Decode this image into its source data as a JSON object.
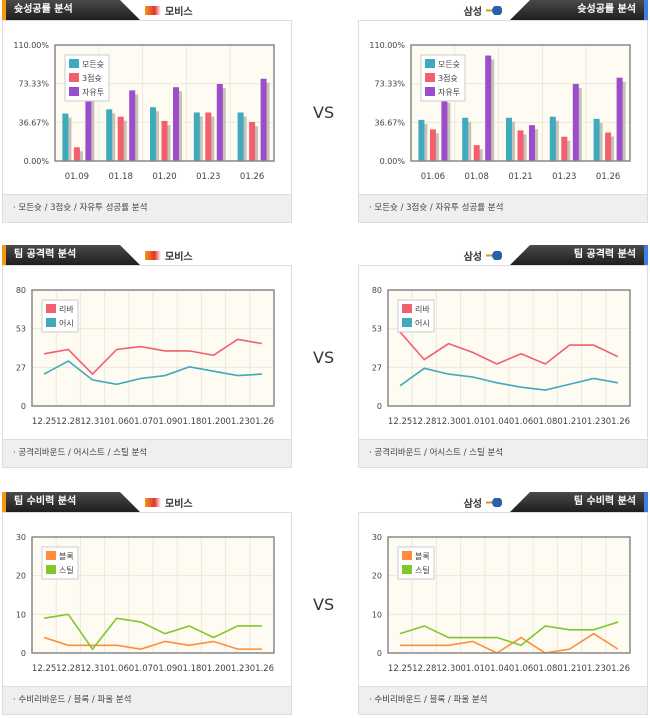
{
  "vs": "VS",
  "teams": {
    "left": "모비스",
    "right": "삼성"
  },
  "sections": [
    {
      "title": "슛성공률 분석",
      "footer": "· 모든슛 / 3점슛 / 자유투 성공률 분석"
    },
    {
      "title": "팀 공격력 분석",
      "footer": "· 공격리바운드 / 어시스트 / 스틸 분석"
    },
    {
      "title": "팀 수비력 분석",
      "footer": "· 수비리바운드 / 블록 / 파울 분석"
    }
  ],
  "colors": {
    "teal": "#3fa9be",
    "red": "#f25f6e",
    "purple": "#9c4dcc",
    "orange": "#ff8c3a",
    "green": "#80c828"
  },
  "chart_data": [
    {
      "id": "shoot-left",
      "type": "bar",
      "ylim": [
        0,
        110
      ],
      "yticks": [
        "0.00%",
        "36.67%",
        "73.33%",
        "110.00%"
      ],
      "categories": [
        "01.09",
        "01.18",
        "01.20",
        "01.23",
        "01.26"
      ],
      "series": [
        {
          "name": "모든슛",
          "color": "#3fa9be",
          "values": [
            45,
            49,
            51,
            46,
            46
          ]
        },
        {
          "name": "3점슛",
          "color": "#f25f6e",
          "values": [
            13,
            42,
            38,
            46,
            37
          ]
        },
        {
          "name": "자유투",
          "color": "#9c4dcc",
          "values": [
            61,
            67,
            70,
            73,
            78
          ]
        }
      ]
    },
    {
      "id": "shoot-right",
      "type": "bar",
      "ylim": [
        0,
        110
      ],
      "yticks": [
        "0.00%",
        "36.67%",
        "73.33%",
        "110.00%"
      ],
      "categories": [
        "01.06",
        "01.08",
        "01.21",
        "01.23",
        "01.26"
      ],
      "series": [
        {
          "name": "모든슛",
          "color": "#3fa9be",
          "values": [
            39,
            41,
            41,
            42,
            40
          ]
        },
        {
          "name": "3점슛",
          "color": "#f25f6e",
          "values": [
            30,
            15,
            29,
            23,
            27
          ]
        },
        {
          "name": "자유투",
          "color": "#9c4dcc",
          "values": [
            59,
            100,
            34,
            73,
            79
          ]
        }
      ]
    },
    {
      "id": "attack-left",
      "type": "line",
      "ylim": [
        0,
        80
      ],
      "yticks": [
        "0",
        "27",
        "53",
        "80"
      ],
      "categories": [
        "12.25",
        "12.28",
        "12.31",
        "01.06",
        "01.07",
        "01.09",
        "01.18",
        "01.20",
        "01.23",
        "01.26"
      ],
      "series": [
        {
          "name": "리바",
          "color": "#f25f6e",
          "values": [
            36,
            39,
            22,
            39,
            41,
            38,
            38,
            35,
            46,
            43
          ]
        },
        {
          "name": "어시",
          "color": "#3fa9be",
          "values": [
            22,
            31,
            18,
            15,
            19,
            21,
            27,
            24,
            21,
            22
          ]
        }
      ]
    },
    {
      "id": "attack-right",
      "type": "line",
      "ylim": [
        0,
        80
      ],
      "yticks": [
        "0",
        "27",
        "53",
        "80"
      ],
      "categories": [
        "12.25",
        "12.28",
        "12.30",
        "01.01",
        "01.04",
        "01.06",
        "01.08",
        "01.21",
        "01.23",
        "01.26"
      ],
      "series": [
        {
          "name": "리바",
          "color": "#f25f6e",
          "values": [
            51,
            32,
            43,
            37,
            29,
            36,
            29,
            42,
            42,
            34
          ]
        },
        {
          "name": "어시",
          "color": "#3fa9be",
          "values": [
            14,
            26,
            22,
            20,
            16,
            13,
            11,
            15,
            19,
            16
          ]
        }
      ]
    },
    {
      "id": "defense-left",
      "type": "line",
      "ylim": [
        0,
        30
      ],
      "yticks": [
        "0",
        "10",
        "20",
        "30"
      ],
      "categories": [
        "12.25",
        "12.28",
        "12.31",
        "01.06",
        "01.07",
        "01.09",
        "01.18",
        "01.20",
        "01.23",
        "01.26"
      ],
      "series": [
        {
          "name": "블록",
          "color": "#ff8c3a",
          "values": [
            4,
            2,
            2,
            2,
            1,
            3,
            2,
            3,
            1,
            1
          ]
        },
        {
          "name": "스틸",
          "color": "#80c828",
          "values": [
            9,
            10,
            1,
            9,
            8,
            5,
            7,
            4,
            7,
            7
          ]
        }
      ]
    },
    {
      "id": "defense-right",
      "type": "line",
      "ylim": [
        0,
        30
      ],
      "yticks": [
        "0",
        "10",
        "20",
        "30"
      ],
      "categories": [
        "12.25",
        "12.28",
        "12.30",
        "01.01",
        "01.04",
        "01.06",
        "01.08",
        "01.21",
        "01.23",
        "01.26"
      ],
      "series": [
        {
          "name": "블록",
          "color": "#ff8c3a",
          "values": [
            2,
            2,
            2,
            3,
            0,
            4,
            0,
            1,
            5,
            1
          ]
        },
        {
          "name": "스틸",
          "color": "#80c828",
          "values": [
            5,
            7,
            4,
            4,
            4,
            2,
            7,
            6,
            6,
            8
          ]
        }
      ]
    }
  ]
}
